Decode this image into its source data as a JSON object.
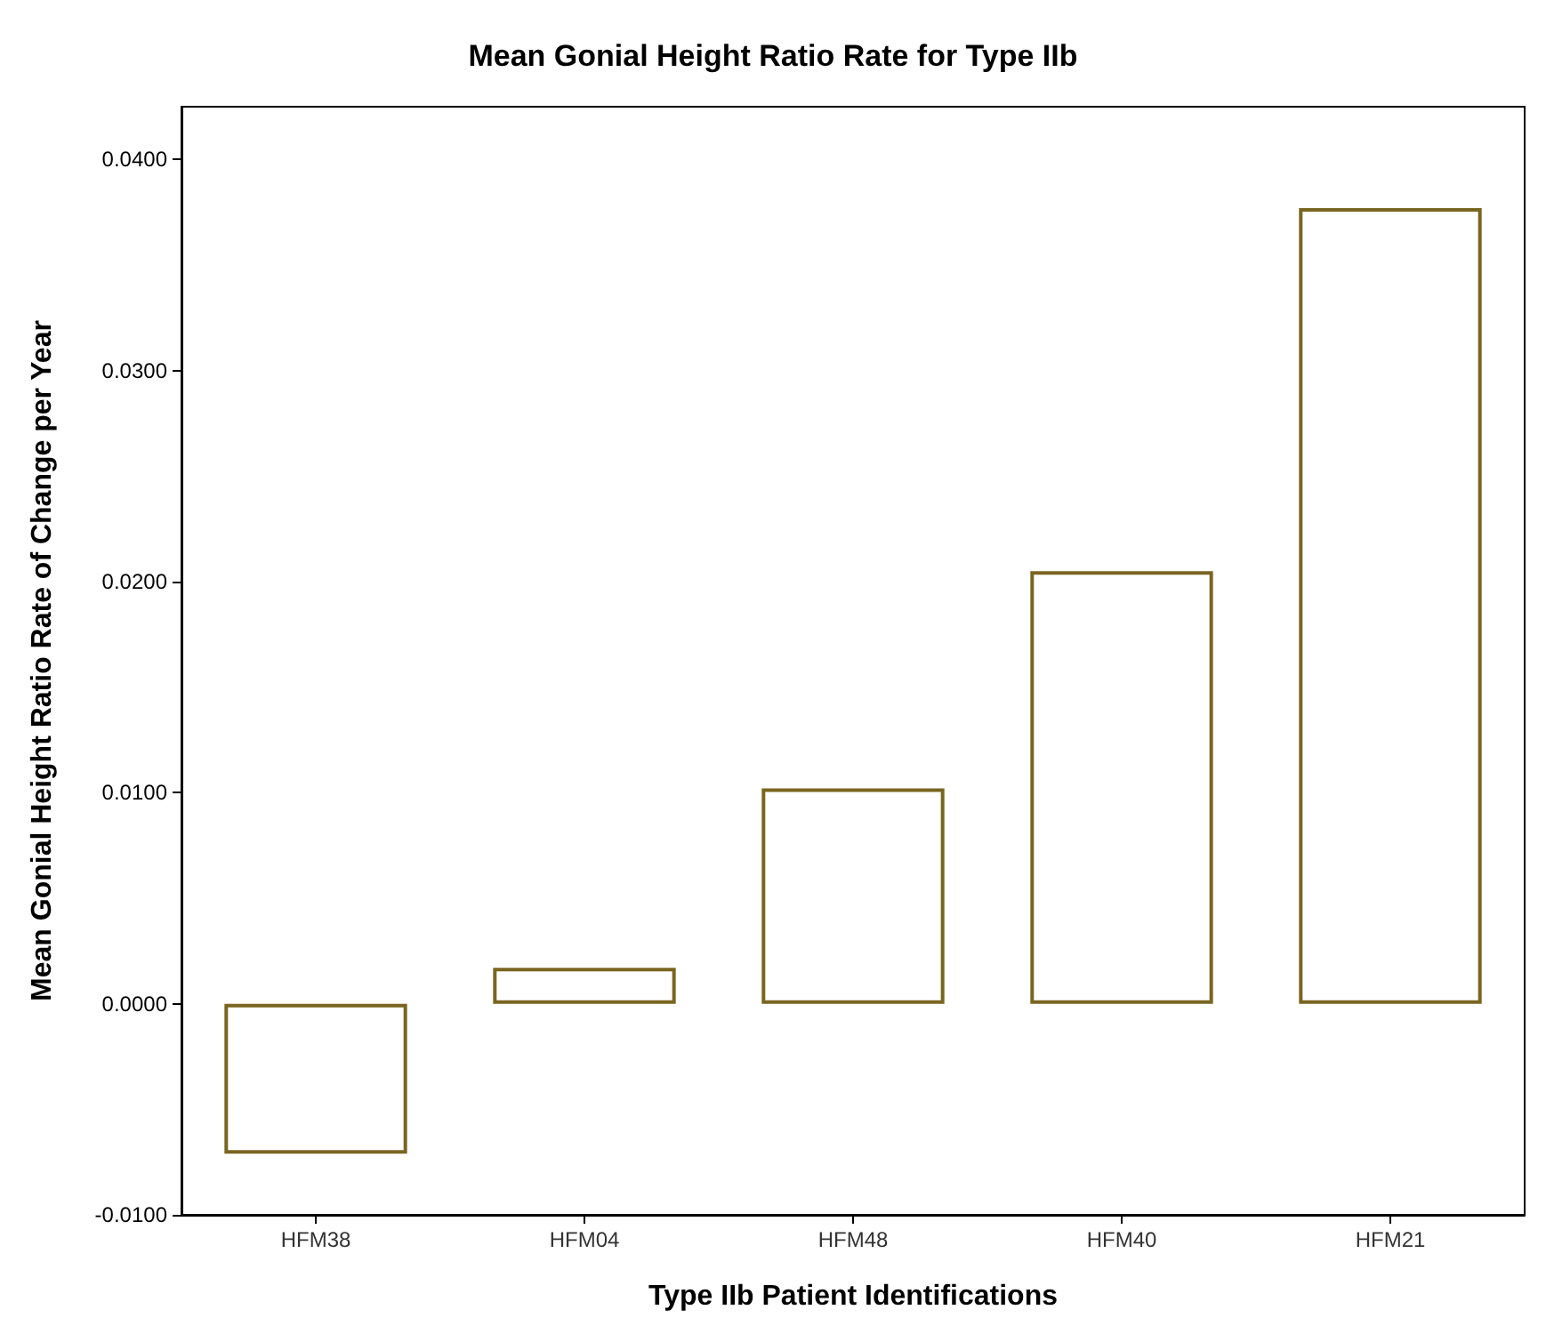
{
  "chart_data": {
    "type": "bar",
    "title": "Mean Gonial Height Ratio Rate for Type IIb",
    "xlabel": "Type IIb Patient Identifications",
    "ylabel": "Mean Gonial Height Ratio Rate of Change per Year",
    "categories": [
      "HFM38",
      "HFM04",
      "HFM48",
      "HFM40",
      "HFM21"
    ],
    "values": [
      -0.0071,
      0.0017,
      0.0102,
      0.0205,
      0.0377
    ],
    "color": "#ffffff",
    "ylim": [
      -0.01,
      0.0425
    ],
    "yticks": [
      {
        "value": -0.01,
        "label": "-0.0100"
      },
      {
        "value": 0,
        "label": "0.0000"
      },
      {
        "value": 0.01,
        "label": "0.0100"
      },
      {
        "value": 0.02,
        "label": "0.0200"
      },
      {
        "value": 0.03,
        "label": "0.0300"
      },
      {
        "value": 0.04,
        "label": "0.0400"
      }
    ],
    "grid": false
  }
}
